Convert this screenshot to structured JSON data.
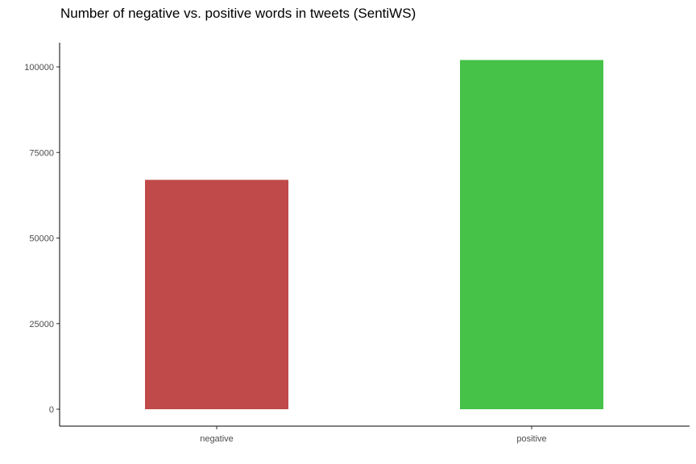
{
  "chart_data": {
    "type": "bar",
    "title": "Number of negative vs. positive words in tweets (SentiWS)",
    "xlabel": "",
    "ylabel": "",
    "categories": [
      "negative",
      "positive"
    ],
    "values": [
      67000,
      102000
    ],
    "colors": [
      "#c04a4a",
      "#46c248"
    ],
    "ylim": [
      0,
      105000
    ],
    "yticks": [
      0,
      25000,
      50000,
      75000,
      100000
    ],
    "ytick_labels": [
      "0",
      "25000",
      "50000",
      "75000",
      "100000"
    ],
    "grid": false,
    "legend": "none"
  }
}
